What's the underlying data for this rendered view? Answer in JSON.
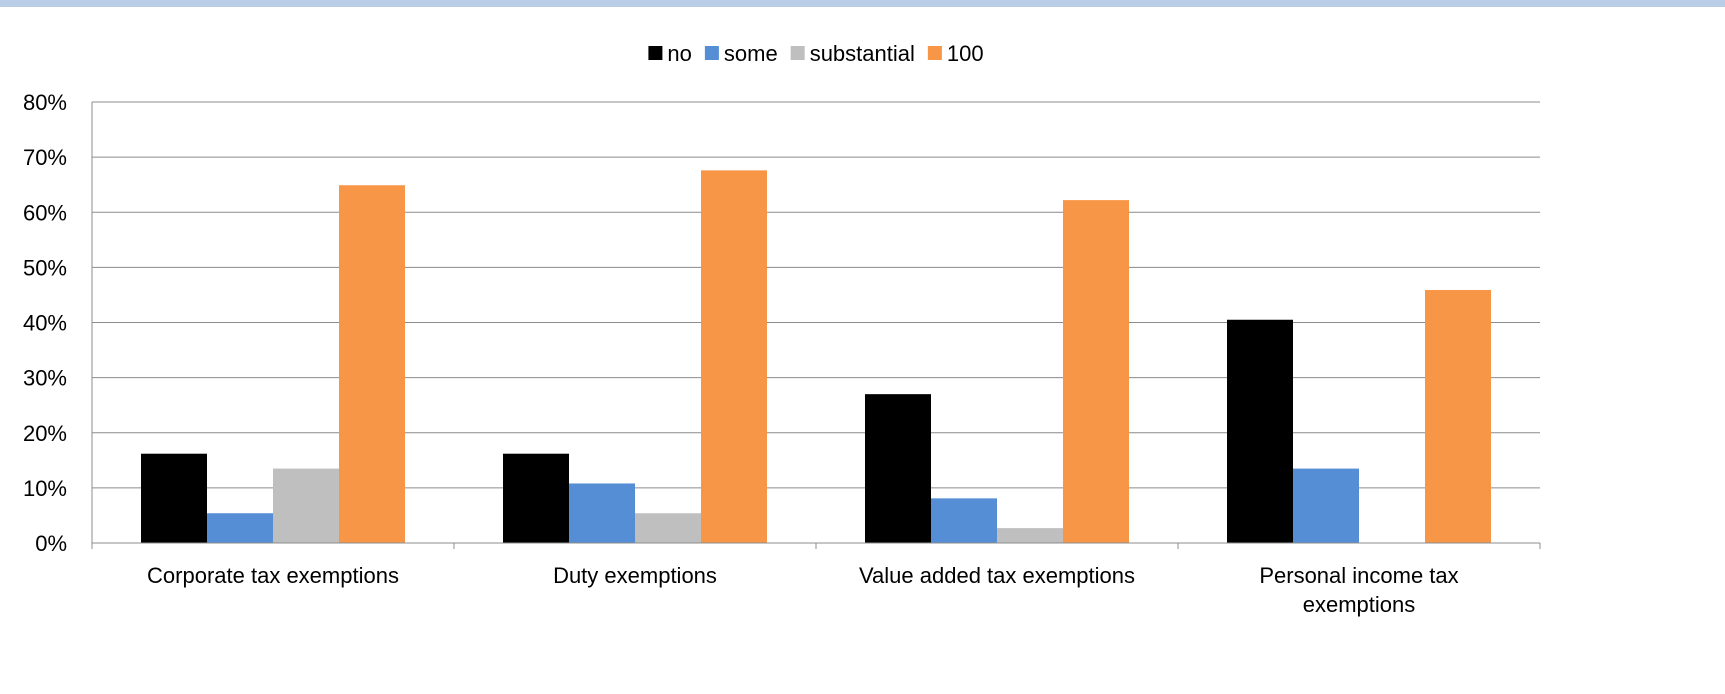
{
  "chart_data": {
    "type": "bar",
    "title": "",
    "xlabel": "",
    "ylabel": "",
    "categories": [
      "Corporate tax exemptions",
      "Duty exemptions",
      "Value added tax exemptions",
      "Personal income tax exemptions"
    ],
    "series": [
      {
        "name": "no",
        "color": "#000000",
        "values": [
          16.2,
          16.2,
          27.0,
          40.5
        ]
      },
      {
        "name": "some",
        "color": "#558ed5",
        "values": [
          5.4,
          10.8,
          8.1,
          13.5
        ]
      },
      {
        "name": "substantial",
        "color": "#bfbfbf",
        "values": [
          13.5,
          5.4,
          2.7,
          0
        ]
      },
      {
        "name": "100",
        "color": "#f79646",
        "values": [
          64.9,
          67.6,
          62.2,
          45.9
        ]
      }
    ],
    "ylim": [
      0,
      80
    ],
    "yticks": [
      "0%",
      "10%",
      "20%",
      "30%",
      "40%",
      "50%",
      "60%",
      "70%",
      "80%"
    ],
    "grid": true,
    "legend_position": "top-center"
  }
}
